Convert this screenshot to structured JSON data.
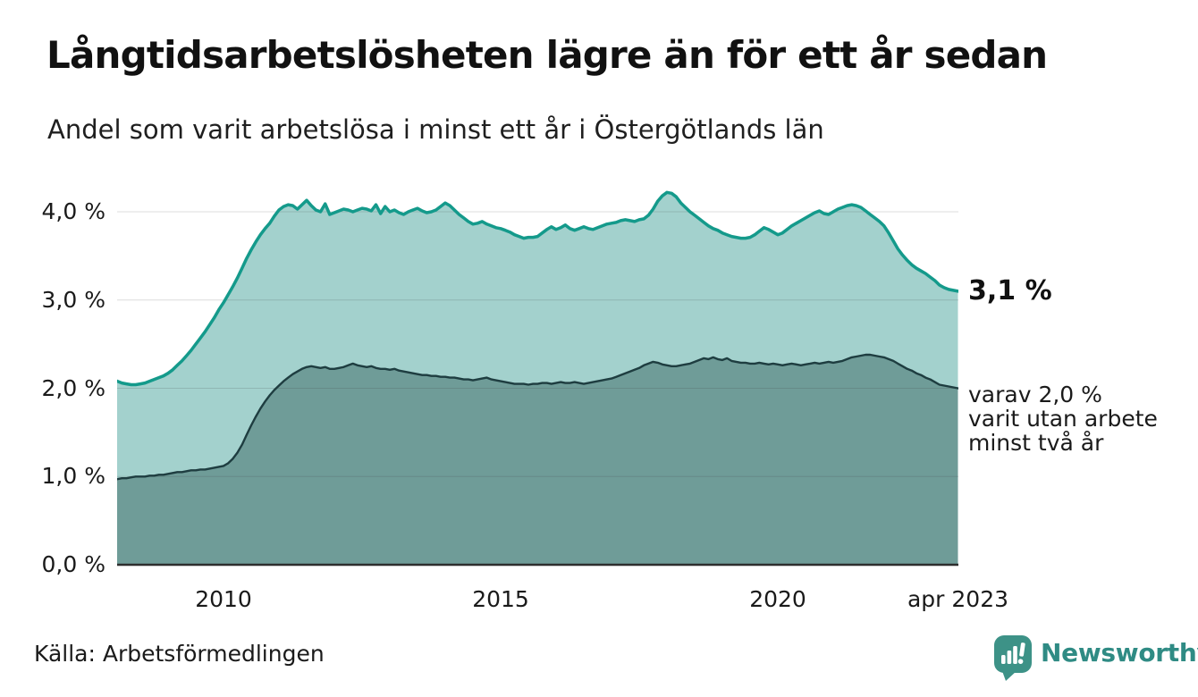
{
  "header": {
    "title": "Långtidsarbetslösheten lägre än för ett år sedan",
    "subtitle": "Andel som varit arbetslösa i minst ett år i Östergötlands län"
  },
  "chart_data": {
    "type": "area",
    "title": "Långtidsarbetslösheten lägre än för ett år sedan",
    "subtitle": "Andel som varit arbetslösa i minst ett år i Östergötlands län",
    "unit": "%",
    "x_start_year": 2008.0,
    "x_step_years": 0.0833333,
    "x_end_label_year": 2023.25,
    "ylim": [
      0,
      4.4
    ],
    "grid": true,
    "y_ticks": [
      {
        "value": 0,
        "label": "0,0 %"
      },
      {
        "value": 1,
        "label": "1,0 %"
      },
      {
        "value": 2,
        "label": "2,0 %"
      },
      {
        "value": 3,
        "label": "3,0 %"
      },
      {
        "value": 4,
        "label": "4,0 %"
      }
    ],
    "x_ticks": [
      {
        "t": 2010,
        "label": "2010"
      },
      {
        "t": 2015,
        "label": "2015"
      },
      {
        "t": 2020,
        "label": "2020"
      },
      {
        "t": 2023.25,
        "label": "apr 2023"
      }
    ],
    "series": [
      {
        "name": "arbetslösa minst ett år",
        "line_color": "#149A8B",
        "fill_color": "#A3D1CD",
        "line_width": 3.5,
        "end_value_label": "3,1 %",
        "values": [
          2.1,
          2.08,
          2.06,
          2.05,
          2.04,
          2.04,
          2.05,
          2.06,
          2.08,
          2.1,
          2.12,
          2.14,
          2.17,
          2.21,
          2.26,
          2.31,
          2.37,
          2.43,
          2.5,
          2.57,
          2.64,
          2.72,
          2.8,
          2.89,
          2.97,
          3.06,
          3.15,
          3.25,
          3.36,
          3.47,
          3.57,
          3.66,
          3.74,
          3.81,
          3.87,
          3.95,
          4.02,
          4.06,
          4.08,
          4.07,
          4.03,
          4.08,
          4.13,
          4.07,
          4.02,
          4.0,
          4.09,
          3.97,
          3.99,
          4.01,
          4.03,
          4.02,
          4.0,
          4.02,
          4.04,
          4.03,
          4.01,
          4.08,
          3.98,
          4.06,
          4.0,
          4.02,
          3.99,
          3.97,
          4.0,
          4.02,
          4.04,
          4.01,
          3.99,
          4.0,
          4.02,
          4.06,
          4.1,
          4.07,
          4.02,
          3.97,
          3.93,
          3.89,
          3.86,
          3.87,
          3.89,
          3.86,
          3.84,
          3.82,
          3.81,
          3.79,
          3.77,
          3.74,
          3.72,
          3.7,
          3.71,
          3.71,
          3.72,
          3.76,
          3.8,
          3.83,
          3.8,
          3.82,
          3.85,
          3.81,
          3.79,
          3.81,
          3.83,
          3.81,
          3.8,
          3.82,
          3.84,
          3.86,
          3.87,
          3.88,
          3.9,
          3.91,
          3.9,
          3.89,
          3.91,
          3.92,
          3.96,
          4.03,
          4.12,
          4.18,
          4.22,
          4.21,
          4.17,
          4.1,
          4.05,
          4.0,
          3.96,
          3.92,
          3.88,
          3.84,
          3.81,
          3.79,
          3.76,
          3.74,
          3.72,
          3.71,
          3.7,
          3.7,
          3.71,
          3.74,
          3.78,
          3.82,
          3.8,
          3.77,
          3.74,
          3.76,
          3.8,
          3.84,
          3.87,
          3.9,
          3.93,
          3.96,
          3.99,
          4.01,
          3.98,
          3.97,
          4.0,
          4.03,
          4.05,
          4.07,
          4.08,
          4.07,
          4.05,
          4.01,
          3.97,
          3.93,
          3.89,
          3.84,
          3.76,
          3.67,
          3.58,
          3.51,
          3.45,
          3.4,
          3.36,
          3.33,
          3.3,
          3.26,
          3.22,
          3.17,
          3.14,
          3.12,
          3.11,
          3.1
        ]
      },
      {
        "name": "varav utan arbete minst två år",
        "line_color": "#1E3D40",
        "fill_color": "#6F9C98",
        "line_width": 2.4,
        "end_value_label": "2,0 %",
        "values": [
          0.97,
          0.97,
          0.98,
          0.98,
          0.99,
          1.0,
          1.0,
          1.0,
          1.01,
          1.01,
          1.02,
          1.02,
          1.03,
          1.04,
          1.05,
          1.05,
          1.06,
          1.07,
          1.07,
          1.08,
          1.08,
          1.09,
          1.1,
          1.11,
          1.12,
          1.15,
          1.2,
          1.27,
          1.36,
          1.47,
          1.58,
          1.68,
          1.77,
          1.85,
          1.92,
          1.98,
          2.03,
          2.08,
          2.12,
          2.16,
          2.19,
          2.22,
          2.24,
          2.25,
          2.24,
          2.23,
          2.24,
          2.22,
          2.22,
          2.23,
          2.24,
          2.26,
          2.28,
          2.26,
          2.25,
          2.24,
          2.25,
          2.23,
          2.22,
          2.22,
          2.21,
          2.22,
          2.2,
          2.19,
          2.18,
          2.17,
          2.16,
          2.15,
          2.15,
          2.14,
          2.14,
          2.13,
          2.13,
          2.12,
          2.12,
          2.11,
          2.1,
          2.1,
          2.09,
          2.1,
          2.11,
          2.12,
          2.1,
          2.09,
          2.08,
          2.07,
          2.06,
          2.05,
          2.05,
          2.05,
          2.04,
          2.05,
          2.05,
          2.06,
          2.06,
          2.05,
          2.06,
          2.07,
          2.06,
          2.06,
          2.07,
          2.06,
          2.05,
          2.06,
          2.07,
          2.08,
          2.09,
          2.1,
          2.11,
          2.13,
          2.15,
          2.17,
          2.19,
          2.21,
          2.23,
          2.26,
          2.28,
          2.3,
          2.29,
          2.27,
          2.26,
          2.25,
          2.25,
          2.26,
          2.27,
          2.28,
          2.3,
          2.32,
          2.34,
          2.33,
          2.35,
          2.33,
          2.32,
          2.34,
          2.31,
          2.3,
          2.29,
          2.29,
          2.28,
          2.28,
          2.29,
          2.28,
          2.27,
          2.28,
          2.27,
          2.26,
          2.27,
          2.28,
          2.27,
          2.26,
          2.27,
          2.28,
          2.29,
          2.28,
          2.29,
          2.3,
          2.29,
          2.3,
          2.31,
          2.33,
          2.35,
          2.36,
          2.37,
          2.38,
          2.38,
          2.37,
          2.36,
          2.35,
          2.33,
          2.31,
          2.28,
          2.25,
          2.22,
          2.2,
          2.17,
          2.15,
          2.12,
          2.1,
          2.07,
          2.04,
          2.03,
          2.02,
          2.01,
          2.0
        ]
      }
    ],
    "annotations": {
      "primary": "3,1 %",
      "secondary_lines": [
        "varav 2,0 %",
        "varit utan arbete",
        "minst två år"
      ]
    }
  },
  "footer": {
    "source": "Källa: Arbetsförmedlingen",
    "brand_name": "Newsworthy"
  },
  "colors": {
    "line_1yr": "#149A8B",
    "fill_1yr": "#A3D1CD",
    "line_2yr": "#1E3D40",
    "fill_2yr": "#6F9C98",
    "axis": "#2E2E2E",
    "grid": "#DCDCDC",
    "brand_teal": "#3D9287"
  }
}
